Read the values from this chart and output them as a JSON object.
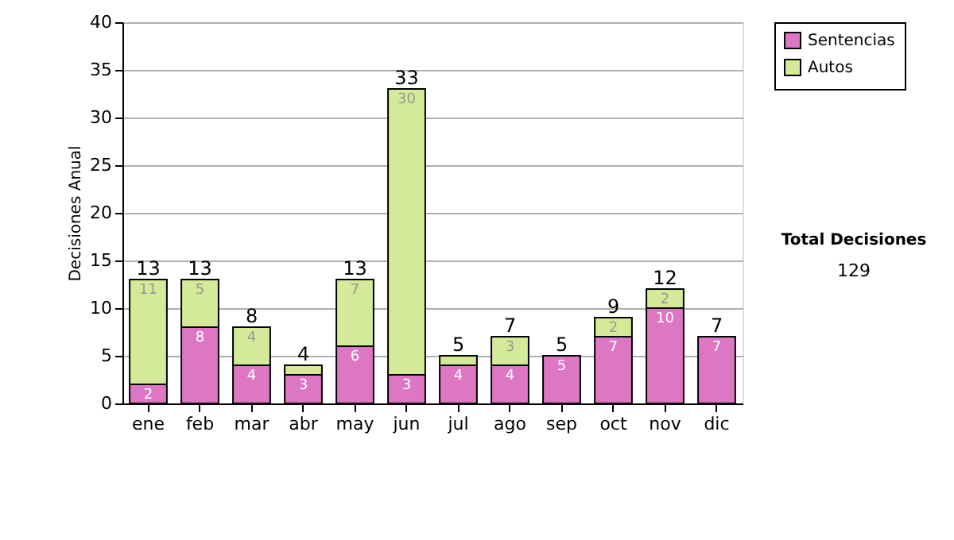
{
  "chart_data": {
    "type": "bar",
    "stacked": true,
    "ylabel": "Decisiones Anual",
    "categories": [
      "ene",
      "feb",
      "mar",
      "abr",
      "may",
      "jun",
      "jul",
      "ago",
      "sep",
      "oct",
      "nov",
      "dic"
    ],
    "series": [
      {
        "name": "Sentencias",
        "color": "#dd77c4",
        "values": [
          2,
          8,
          4,
          3,
          6,
          3,
          4,
          4,
          5,
          7,
          10,
          7
        ],
        "value_labels": [
          "2",
          "8",
          "4",
          "3",
          "6",
          "3",
          "4",
          "4",
          "5",
          "7",
          "10",
          "7"
        ]
      },
      {
        "name": "Autos",
        "color": "#d4ea98",
        "values": [
          11,
          5,
          4,
          1,
          7,
          30,
          1,
          3,
          0,
          2,
          2,
          0
        ],
        "value_labels": [
          "11",
          "5",
          "4",
          null,
          "7",
          "30",
          null,
          "3",
          null,
          "2",
          "2",
          null
        ]
      }
    ],
    "totals": [
      "13",
      "13",
      "8",
      "4",
      "13",
      "33",
      "5",
      "7",
      "5",
      "9",
      "12",
      "7"
    ],
    "ylim": [
      0,
      40
    ],
    "yticks": [
      0,
      5,
      10,
      15,
      20,
      25,
      30,
      35,
      40
    ],
    "grid": "y",
    "legend": "right",
    "annotations": [
      "Total Decisiones",
      "129"
    ]
  }
}
